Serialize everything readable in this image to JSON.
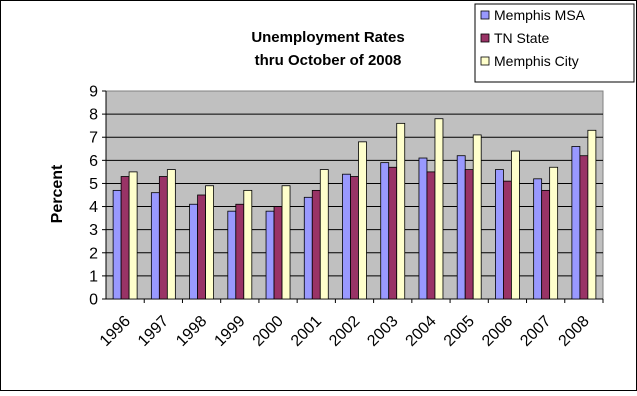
{
  "chart_data": {
    "type": "bar",
    "title_lines": [
      "Unemployment Rates",
      "thru October of 2008"
    ],
    "xlabel": "",
    "ylabel": "Percent",
    "ylim": [
      0,
      9
    ],
    "yticks": [
      0,
      1,
      2,
      3,
      4,
      5,
      6,
      7,
      8,
      9
    ],
    "grid": true,
    "legend_position": "top-right",
    "categories": [
      "1996",
      "1997",
      "1998",
      "1999",
      "2000",
      "2001",
      "2002",
      "2003",
      "2004",
      "2005",
      "2006",
      "2007",
      "2008"
    ],
    "series": [
      {
        "name": "Memphis MSA",
        "color": "#9999FF",
        "values": [
          4.7,
          4.6,
          4.1,
          3.8,
          3.8,
          4.4,
          5.4,
          5.9,
          6.1,
          6.2,
          5.6,
          5.2,
          6.6
        ]
      },
      {
        "name": "TN State",
        "color": "#993366",
        "values": [
          5.3,
          5.3,
          4.5,
          4.1,
          4.0,
          4.7,
          5.3,
          5.7,
          5.5,
          5.6,
          5.1,
          4.7,
          6.2
        ]
      },
      {
        "name": "Memphis City",
        "color": "#FFFFCC",
        "values": [
          5.5,
          5.6,
          4.9,
          4.7,
          4.9,
          5.6,
          6.8,
          7.6,
          7.8,
          7.1,
          6.4,
          5.7,
          7.3
        ]
      }
    ],
    "plot_area_color": "#C0C0C0"
  }
}
